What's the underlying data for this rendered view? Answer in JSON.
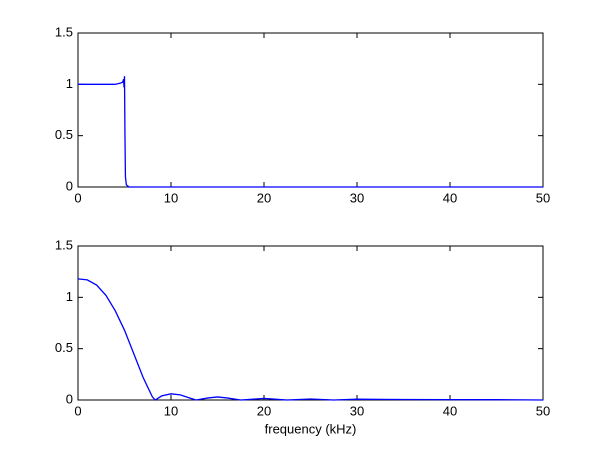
{
  "chart_data": [
    {
      "type": "line",
      "color": "#0000ff",
      "x": [
        0,
        1,
        2,
        3,
        4,
        4.5,
        4.8,
        4.9,
        4.95,
        5,
        5.05,
        5.1,
        5.2,
        5.5,
        6,
        10,
        20,
        30,
        40,
        50
      ],
      "values": [
        1,
        1,
        1,
        1,
        1,
        1.01,
        1.02,
        1.05,
        0.97,
        1.08,
        0.5,
        0.1,
        0.02,
        0,
        0,
        0,
        0,
        0,
        0,
        0
      ],
      "xlim": [
        0,
        50
      ],
      "xticks": [
        0,
        10,
        20,
        30,
        40,
        50
      ],
      "ylim": [
        0,
        1.5
      ],
      "yticks": [
        0,
        0.5,
        1,
        1.5
      ],
      "grid": false
    },
    {
      "type": "line",
      "color": "#0000ff",
      "xlabel": "frequency (kHz)",
      "x": [
        0,
        1,
        2,
        3,
        4,
        5,
        6,
        7,
        8,
        8.3,
        9,
        10,
        11,
        12,
        12.7,
        14,
        15,
        16,
        17.5,
        20,
        22.5,
        25,
        27.5,
        30,
        35,
        40,
        45,
        50
      ],
      "values": [
        1.18,
        1.17,
        1.12,
        1.02,
        0.87,
        0.68,
        0.45,
        0.22,
        0.03,
        0,
        0.04,
        0.06,
        0.05,
        0.02,
        0,
        0.02,
        0.03,
        0.02,
        0,
        0.015,
        0,
        0.01,
        0,
        0.008,
        0.005,
        0.004,
        0.003,
        0
      ],
      "xlim": [
        0,
        50
      ],
      "xticks": [
        0,
        10,
        20,
        30,
        40,
        50
      ],
      "ylim": [
        0,
        1.5
      ],
      "yticks": [
        0,
        0.5,
        1,
        1.5
      ],
      "grid": false
    }
  ]
}
